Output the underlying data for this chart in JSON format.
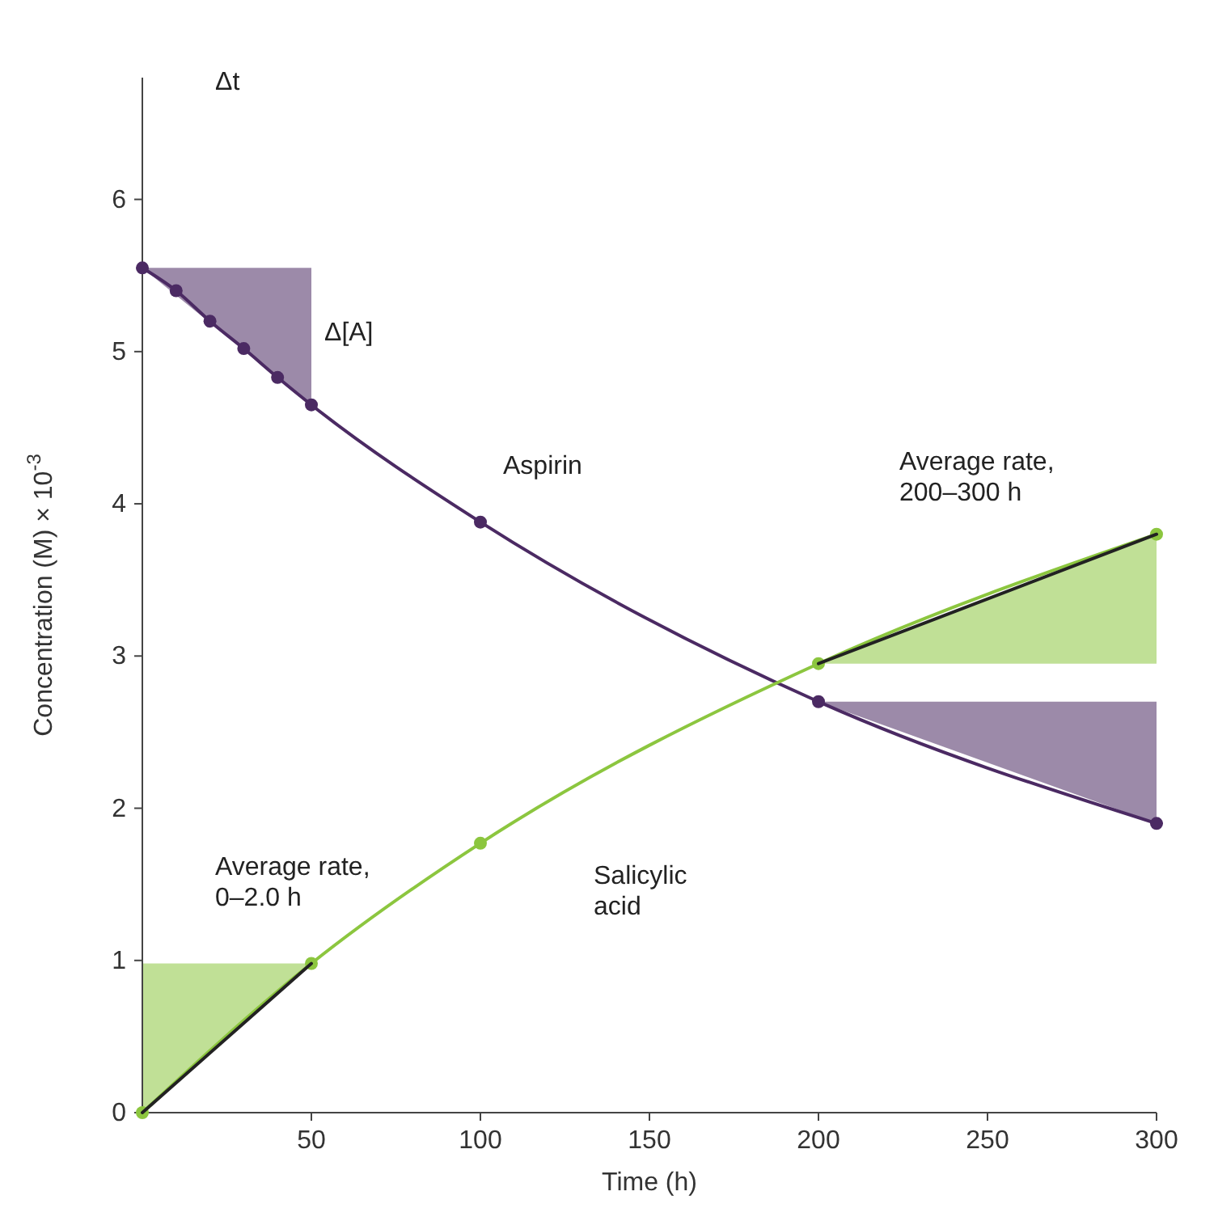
{
  "chart_data": {
    "type": "line",
    "xlabel": "Time (h)",
    "ylabel": "Concentration (M) × 10$^{-3}$",
    "xlim": [
      0,
      300
    ],
    "xticks": [
      50,
      100,
      150,
      200,
      250,
      300
    ],
    "ylim": [
      0,
      6.8
    ],
    "yticks": [
      0,
      1,
      2,
      3,
      4,
      5,
      6
    ],
    "grid": false,
    "marker": "circle",
    "series": [
      {
        "name": "Aspirin",
        "color": "#4b2a63",
        "x": [
          0,
          10,
          20,
          30,
          40,
          50,
          100,
          200,
          300
        ],
        "values": [
          5.55,
          5.4,
          5.2,
          5.02,
          4.83,
          4.65,
          3.88,
          2.7,
          1.9
        ]
      },
      {
        "name": "Salicylic acid",
        "color": "#8cc63f",
        "x": [
          0,
          50,
          100,
          200,
          300
        ],
        "values": [
          0,
          0.98,
          1.77,
          2.95,
          3.8
        ]
      },
      {
        "type": "line",
        "color": "#222222",
        "marker": "none",
        "x": [
          0,
          50
        ],
        "values": [
          0,
          0.98
        ]
      },
      {
        "type": "line",
        "color": "#222222",
        "marker": "none",
        "x": [
          200,
          300
        ],
        "values": [
          2.95,
          3.8
        ]
      }
    ],
    "annotations": [
      "Δt",
      "Δ[A]",
      "Average rate, 200–300 h",
      "Average rate, 0–2.0 h"
    ]
  }
}
